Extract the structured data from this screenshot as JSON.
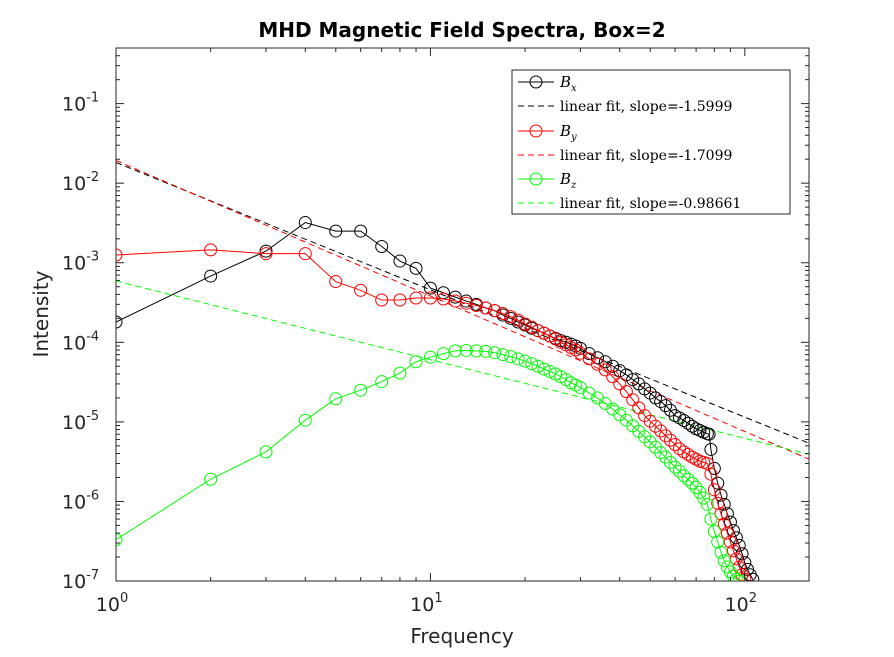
{
  "chart_data": {
    "type": "scatter",
    "title": "MHD Magnetic Field Spectra, Box=2",
    "xlabel": "Frequency",
    "ylabel": "Intensity",
    "xscale": "log",
    "yscale": "log",
    "xlim": [
      1,
      160
    ],
    "ylim": [
      1e-07,
      0.5
    ],
    "grid": false,
    "legend_position": "top-right",
    "x_ticks": [
      {
        "value": 1,
        "base": "10",
        "exp": "0"
      },
      {
        "value": 10,
        "base": "10",
        "exp": "1"
      },
      {
        "value": 100,
        "base": "10",
        "exp": "2"
      }
    ],
    "y_ticks": [
      {
        "value": 1e-07,
        "base": "10",
        "exp": "-7"
      },
      {
        "value": 1e-06,
        "base": "10",
        "exp": "-6"
      },
      {
        "value": 1e-05,
        "base": "10",
        "exp": "-5"
      },
      {
        "value": 0.0001,
        "base": "10",
        "exp": "-4"
      },
      {
        "value": 0.001,
        "base": "10",
        "exp": "-3"
      },
      {
        "value": 0.01,
        "base": "10",
        "exp": "-2"
      },
      {
        "value": 0.1,
        "base": "10",
        "exp": "-1"
      }
    ],
    "series": [
      {
        "name_base": "B",
        "name_sub": "x",
        "color": "#000000",
        "x": [
          1,
          2,
          3,
          4,
          5,
          6,
          7,
          8,
          9,
          10,
          11,
          12,
          13,
          14,
          15,
          16,
          17,
          18,
          19,
          20,
          21,
          22,
          23,
          24,
          25,
          26,
          27,
          28,
          29,
          30,
          32,
          34,
          36,
          38,
          40,
          42,
          44,
          46,
          48,
          50,
          52,
          54,
          56,
          58,
          60,
          62,
          64,
          66,
          68,
          70,
          72,
          74,
          76,
          77,
          78,
          80,
          82,
          84,
          86,
          88,
          90,
          92,
          94,
          96,
          98,
          100,
          102,
          104,
          106
        ],
        "y": [
          0.00018,
          0.00068,
          0.0014,
          0.0032,
          0.0025,
          0.0025,
          0.0016,
          0.00105,
          0.00085,
          0.00048,
          0.00042,
          0.00037,
          0.00033,
          0.0003,
          0.00027,
          0.00025,
          0.00022,
          0.0002,
          0.00018,
          0.000165,
          0.00015,
          0.00014,
          0.00013,
          0.00012,
          0.000112,
          0.000105,
          0.0001,
          9.5e-05,
          9e-05,
          8.4e-05,
          7.2e-05,
          6.4e-05,
          5.7e-05,
          5e-05,
          4.4e-05,
          3.9e-05,
          3.4e-05,
          3e-05,
          2.6e-05,
          2.3e-05,
          2e-05,
          1.8e-05,
          1.6e-05,
          1.4e-05,
          1.2e-05,
          1.12e-05,
          1.04e-05,
          9.6e-06,
          8.8e-06,
          8.2e-06,
          7.8e-06,
          7.4e-06,
          7.1e-06,
          7e-06,
          4.5e-06,
          2.6e-06,
          1.7e-06,
          1.2e-06,
          9.2e-07,
          7e-07,
          5.5e-07,
          4.3e-07,
          3.5e-07,
          2.8e-07,
          2.2e-07,
          1.7e-07,
          1.4e-07,
          1.2e-07,
          1.05e-07
        ]
      },
      {
        "name_base": "B",
        "name_sub": "y",
        "color": "#ff0000",
        "x": [
          1,
          2,
          3,
          4,
          5,
          6,
          7,
          8,
          9,
          10,
          11,
          12,
          13,
          14,
          15,
          16,
          17,
          18,
          19,
          20,
          21,
          22,
          23,
          24,
          25,
          26,
          27,
          28,
          29,
          30,
          32,
          34,
          36,
          38,
          40,
          42,
          44,
          46,
          48,
          50,
          52,
          54,
          56,
          58,
          60,
          62,
          64,
          66,
          68,
          70,
          72,
          74,
          76,
          78,
          80,
          82,
          84,
          86,
          88,
          90,
          92,
          94,
          96,
          98,
          100
        ],
        "y": [
          0.00125,
          0.00145,
          0.0013,
          0.0013,
          0.00058,
          0.00045,
          0.00034,
          0.00034,
          0.00036,
          0.00036,
          0.00035,
          0.00033,
          0.00031,
          0.00029,
          0.00027,
          0.00025,
          0.00023,
          0.00021,
          0.00019,
          0.00017,
          0.000155,
          0.00014,
          0.00013,
          0.00012,
          0.00011,
          0.0001,
          9.3e-05,
          8.6e-05,
          8e-05,
          7.3e-05,
          6.2e-05,
          5.3e-05,
          4.5e-05,
          3.7e-05,
          3e-05,
          2.4e-05,
          1.9e-05,
          1.5e-05,
          1.2e-05,
          1.02e-05,
          8.8e-06,
          7.7e-06,
          6.7e-06,
          5.9e-06,
          5.2e-06,
          4.6e-06,
          4.2e-06,
          3.9e-06,
          3.6e-06,
          3.4e-06,
          3.2e-06,
          3.1e-06,
          3e-06,
          2.2e-06,
          1.4e-06,
          9.5e-07,
          7e-07,
          5.2e-07,
          4e-07,
          3.1e-07,
          2.4e-07,
          1.9e-07,
          1.5e-07,
          1.2e-07,
          1.05e-07
        ]
      },
      {
        "name_base": "B",
        "name_sub": "z",
        "color": "#00ff00",
        "x": [
          1,
          2,
          3,
          4,
          5,
          6,
          7,
          8,
          9,
          10,
          11,
          12,
          13,
          14,
          15,
          16,
          17,
          18,
          19,
          20,
          21,
          22,
          23,
          24,
          25,
          26,
          27,
          28,
          29,
          30,
          32,
          34,
          36,
          38,
          40,
          42,
          44,
          46,
          48,
          50,
          52,
          54,
          56,
          58,
          60,
          62,
          64,
          66,
          68,
          70,
          72,
          74,
          76,
          78,
          80,
          82,
          84,
          86,
          88,
          90,
          92,
          94,
          96
        ],
        "y": [
          3.3e-07,
          1.9e-06,
          4.2e-06,
          1.05e-05,
          1.95e-05,
          2.5e-05,
          3.2e-05,
          4.1e-05,
          5.7e-05,
          6.5e-05,
          7.2e-05,
          7.8e-05,
          7.9e-05,
          7.8e-05,
          7.7e-05,
          7.4e-05,
          7e-05,
          6.6e-05,
          6.2e-05,
          5.8e-05,
          5.4e-05,
          5e-05,
          4.6e-05,
          4.3e-05,
          4e-05,
          3.7e-05,
          3.4e-05,
          3.1e-05,
          2.9e-05,
          2.7e-05,
          2.3e-05,
          2e-05,
          1.7e-05,
          1.45e-05,
          1.23e-05,
          1.05e-05,
          8.9e-06,
          7.6e-06,
          6.5e-06,
          5.6e-06,
          4.8e-06,
          4.1e-06,
          3.6e-06,
          3.1e-06,
          2.7e-06,
          2.4e-06,
          2.1e-06,
          1.9e-06,
          1.7e-06,
          1.5e-06,
          1.3e-06,
          1.1e-06,
          9.2e-07,
          6e-07,
          4.2e-07,
          3.1e-07,
          2.3e-07,
          1.8e-07,
          1.5e-07,
          1.3e-07,
          1.15e-07,
          1.05e-07,
          1e-07
        ]
      }
    ],
    "fits": [
      {
        "color": "#000000",
        "label": "linear fit, slope=-1.5999",
        "x": [
          1,
          160
        ],
        "y": [
          0.0182,
          5.4e-06
        ]
      },
      {
        "color": "#ff0000",
        "label": "linear fit, slope=-1.7099",
        "x": [
          1,
          160
        ],
        "y": [
          0.0193,
          3.4e-06
        ]
      },
      {
        "color": "#00ff00",
        "label": "linear fit, slope=-0.98661",
        "x": [
          1,
          160
        ],
        "y": [
          0.00059,
          3.9e-06
        ]
      }
    ]
  }
}
